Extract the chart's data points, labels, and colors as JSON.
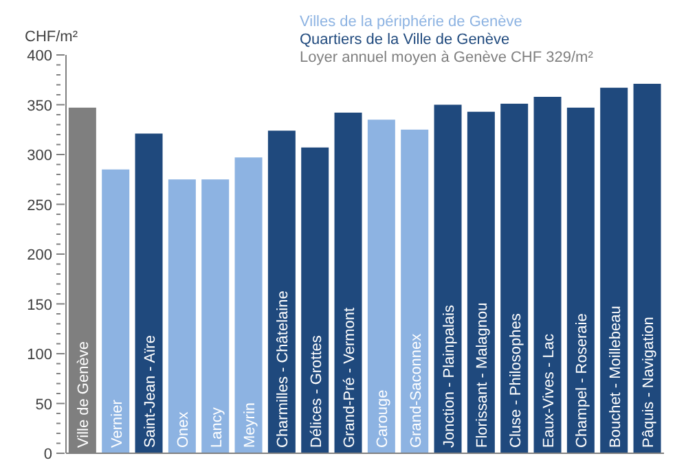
{
  "chart_data": {
    "type": "bar",
    "ylabel": "CHF/m²",
    "categories": [
      "Ville de Genève",
      "Vernier",
      "Saint-Jean - Aïre",
      "Onex",
      "Lancy",
      "Meyrin",
      "Charmilles - Châtelaine",
      "Délices - Grottes",
      "Grand-Pré - Vermont",
      "Carouge",
      "Grand-Saconnex",
      "Jonction - Plainpalais",
      "Florissant - Malagnou",
      "Cluse - Philosophes",
      "Eaux-Vives - Lac",
      "Champel - Roseraie",
      "Bouchet - Moillebeau",
      "Pâquis - Navigation"
    ],
    "series": [
      {
        "name": "Villes de la périphérie de Genève",
        "color": "#8db3e2",
        "values": [
          null,
          285,
          null,
          275,
          275,
          297,
          null,
          null,
          null,
          335,
          325,
          null,
          null,
          null,
          null,
          null,
          null,
          null
        ]
      },
      {
        "name": "Quartiers de la Ville de Genève",
        "color": "#1f497d",
        "values": [
          null,
          null,
          321,
          null,
          null,
          null,
          324,
          307,
          342,
          null,
          null,
          350,
          343,
          351,
          358,
          347,
          367,
          371
        ]
      },
      {
        "name": "Loyer annuel moyen à Genève CHF 329/m²",
        "color": "#7f7f7f",
        "values": [
          347,
          null,
          null,
          null,
          null,
          null,
          null,
          null,
          null,
          null,
          null,
          null,
          null,
          null,
          null,
          null,
          null,
          null
        ]
      }
    ],
    "stacked": true,
    "ylim": [
      0,
      400
    ],
    "yticks": [
      0,
      {
        "value": 10,
        "label": null
      },
      {
        "value": 20,
        "label": null
      },
      {
        "value": 30,
        "label": null
      },
      {
        "value": 40,
        "label": null
      },
      50,
      {
        "value": 60,
        "label": null
      },
      {
        "value": 70,
        "label": null
      },
      {
        "value": 80,
        "label": null
      },
      {
        "value": 90,
        "label": null
      },
      100,
      {
        "value": 110,
        "label": null
      },
      {
        "value": 120,
        "label": null
      },
      {
        "value": 130,
        "label": null
      },
      {
        "value": 140,
        "label": null
      },
      150,
      {
        "value": 160,
        "label": null
      },
      {
        "value": 170,
        "label": null
      },
      {
        "value": 180,
        "label": null
      },
      {
        "value": 190,
        "label": null
      },
      200,
      {
        "value": 210,
        "label": null
      },
      {
        "value": 220,
        "label": null
      },
      {
        "value": 230,
        "label": null
      },
      {
        "value": 240,
        "label": null
      },
      250,
      {
        "value": 260,
        "label": null
      },
      {
        "value": 270,
        "label": null
      },
      {
        "value": 280,
        "label": null
      },
      {
        "value": 290,
        "label": null
      },
      300,
      {
        "value": 310,
        "label": null
      },
      {
        "value": 320,
        "label": null
      },
      {
        "value": 330,
        "label": null
      },
      {
        "value": 340,
        "label": null
      },
      350,
      {
        "value": 360,
        "label": null
      },
      {
        "value": 370,
        "label": null
      },
      {
        "value": 380,
        "label": null
      },
      {
        "value": 390,
        "label": null
      },
      400
    ],
    "grid": false,
    "legend": "top"
  }
}
